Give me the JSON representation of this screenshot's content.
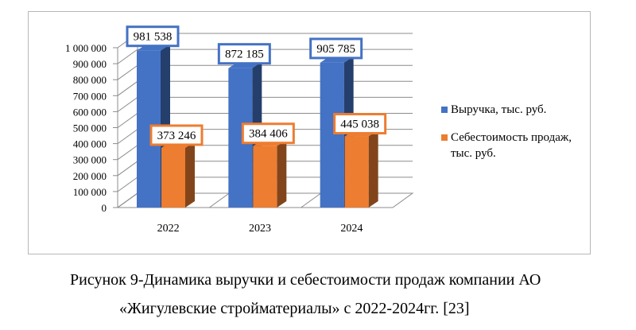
{
  "chart_data": {
    "type": "bar",
    "categories": [
      "2022",
      "2023",
      "2024"
    ],
    "series": [
      {
        "name": "Выручка, тыс. руб.",
        "values": [
          981538,
          872185,
          905785
        ],
        "color": "#4472c4",
        "label_border": "#4472c4"
      },
      {
        "name": "Себестоимость продаж, тыс. руб.",
        "values": [
          373246,
          384406,
          445038
        ],
        "color": "#ed7d31",
        "label_border": "#ed7d31"
      }
    ],
    "data_labels": [
      [
        "981 538",
        "872 185",
        "905 785"
      ],
      [
        "373 246",
        "384 406",
        "445 038"
      ]
    ],
    "yticks": [
      "0",
      "100 000",
      "200 000",
      "300 000",
      "400 000",
      "500 000",
      "600 000",
      "700 000",
      "800 000",
      "900 000",
      "1 000 000"
    ],
    "ylim": [
      0,
      1000000
    ],
    "title": "",
    "xlabel": "",
    "ylabel": "",
    "legend_position": "right",
    "grid": true,
    "style": "3d-bar"
  },
  "legend": {
    "items": [
      "Выручка, тыс. руб.",
      "Себестоимость продаж, тыс. руб."
    ]
  },
  "caption": {
    "line1": "Рисунок 9-Динамика выручки и себестоимости продаж компании  АО",
    "line2": "«Жигулевские стройматериалы» с 2022-2024гг. [23]"
  }
}
